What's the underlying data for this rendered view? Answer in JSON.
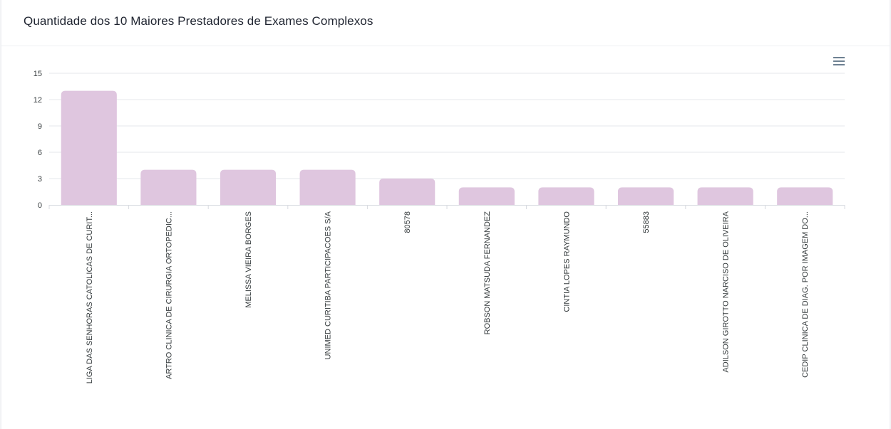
{
  "card": {
    "title": "Quantidade dos 10 Maiores Prestadores de Exames Complexos"
  },
  "toolbar": {
    "menu_icon": "hamburger-menu-icon"
  },
  "colors": {
    "bar": "#dfc6df",
    "grid": "#e5e7eb",
    "axis": "#d8dbe0",
    "text": "#373d3f"
  },
  "chart_data": {
    "type": "bar",
    "title": "Quantidade dos 10 Maiores Prestadores de Exames Complexos",
    "xlabel": "",
    "ylabel": "",
    "ylim": [
      0,
      15
    ],
    "yticks": [
      0,
      3,
      6,
      9,
      12,
      15
    ],
    "grid": true,
    "legend": "none",
    "categories": [
      "LIGA DAS SENHORAS CATOLICAS DE CURIT...",
      "ARTRO CLINICA DE CIRURGIA ORTOPEDIC...",
      "MELISSA VIEIRA BORGES",
      "UNIMED CURITIBA PARTICIPACOES S/A",
      "80578",
      "ROBSON MATSUDA FERNANDEZ",
      "CINTIA LOPES RAYMUNDO",
      "55883",
      "ADILSON GIROTTO NARCISO DE OLIVEIRA",
      "CEDIP CLINICA DE DIAG. POR IMAGEM DO..."
    ],
    "values": [
      13,
      4,
      4,
      4,
      3,
      2,
      2,
      2,
      2,
      2
    ]
  }
}
